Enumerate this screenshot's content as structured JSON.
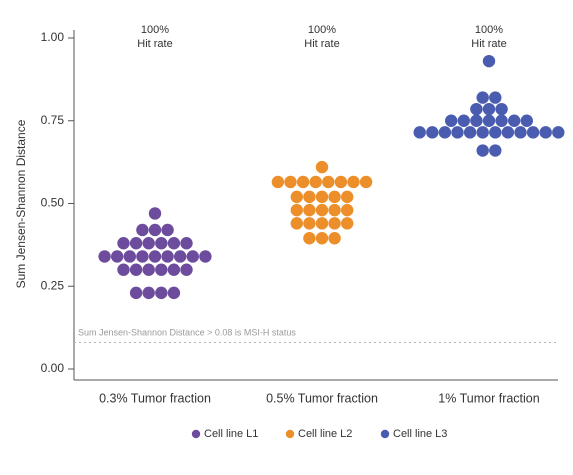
{
  "chart_data": {
    "type": "scatter",
    "title": "",
    "xlabel": "",
    "ylabel": "Sum Jensen-Shannon Distance",
    "ylim": [
      0,
      1.05
    ],
    "yticks": [
      "0.00",
      "0.25",
      "0.50",
      "0.75",
      "1.00"
    ],
    "categories": [
      "0.3% Tumor fraction",
      "0.5% Tumor fraction",
      "1% Tumor fraction"
    ],
    "grid": false,
    "legend_position": "bottom",
    "threshold": {
      "value": 0.08,
      "label": "Sum Jensen-Shannon Distance > 0.08 is MSI-H status",
      "style": "dotted"
    },
    "annotations": [
      {
        "line1": "100%",
        "line2": "Hit rate"
      },
      {
        "line1": "100%",
        "line2": "Hit rate"
      },
      {
        "line1": "100%",
        "line2": "Hit rate"
      }
    ],
    "series": [
      {
        "name": "Cell line L1",
        "color": "#6d4c9e",
        "category": 0,
        "values": [
          0.47,
          0.42,
          0.42,
          0.42,
          0.38,
          0.38,
          0.38,
          0.38,
          0.38,
          0.38,
          0.34,
          0.34,
          0.34,
          0.34,
          0.34,
          0.34,
          0.34,
          0.34,
          0.34,
          0.3,
          0.3,
          0.3,
          0.3,
          0.3,
          0.3,
          0.23,
          0.23,
          0.23,
          0.23
        ]
      },
      {
        "name": "Cell line L2",
        "color": "#ec8f2a",
        "category": 1,
        "values": [
          0.61,
          0.565,
          0.565,
          0.565,
          0.565,
          0.565,
          0.565,
          0.565,
          0.565,
          0.52,
          0.52,
          0.52,
          0.52,
          0.52,
          0.48,
          0.48,
          0.48,
          0.48,
          0.48,
          0.44,
          0.44,
          0.44,
          0.44,
          0.44,
          0.395,
          0.395,
          0.395
        ]
      },
      {
        "name": "Cell line L3",
        "color": "#4a5cb0",
        "category": 2,
        "values": [
          0.93,
          0.82,
          0.82,
          0.785,
          0.785,
          0.785,
          0.75,
          0.75,
          0.75,
          0.75,
          0.75,
          0.75,
          0.75,
          0.715,
          0.715,
          0.715,
          0.715,
          0.715,
          0.715,
          0.715,
          0.715,
          0.715,
          0.715,
          0.715,
          0.715,
          0.66,
          0.66
        ]
      }
    ]
  }
}
